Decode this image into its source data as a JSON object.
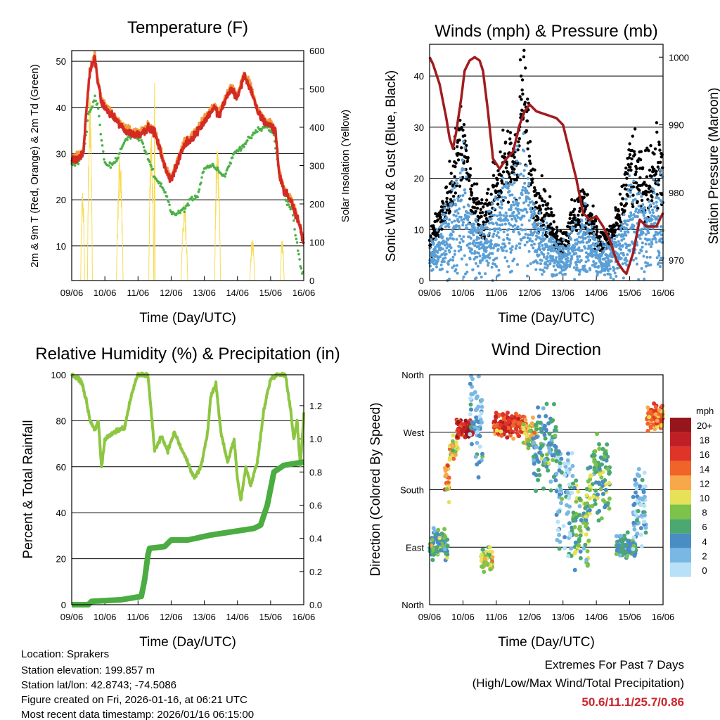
{
  "footer": {
    "location": "Location: Sprakers",
    "elevation": "Station elevation: 199.857 m",
    "latlon": "Station lat/lon: 42.8743; -74.5086",
    "created": "Figure created on Fri, 2026-01-16, at 06:21 UTC",
    "recent": "Most recent data timestamp: 2026/01/16 06:15:00",
    "extremes_title": "Extremes For Past 7 Days",
    "extremes_sub": "(High/Low/Max Wind/Total Precipitation)",
    "extremes_values": "50.6/11.1/25.7/0.86"
  },
  "colors": {
    "temp9m": "#d42a24",
    "temp2m": "#f39a3c",
    "dew": "#4cb147",
    "solar": "#f7dc55",
    "gust": "#000000",
    "sonic": "#5a9fd6",
    "pressure": "#a01c1f",
    "rh": "#8dc641",
    "precip": "#4bac41",
    "extreme": "#c9252c"
  },
  "chart_data": [
    {
      "type": "line",
      "title": "Temperature (F)",
      "xlabel": "Time (Day/UTC)",
      "ylabel": "2m & 9m T (Red, Orange) & 2m Td (Green)",
      "y2label": "Solar Insolation (Yellow)",
      "xticks": [
        "09/06",
        "10/06",
        "11/06",
        "12/06",
        "13/06",
        "14/06",
        "15/06",
        "16/06"
      ],
      "xlim": [
        0,
        7
      ],
      "ylim": [
        2.5,
        52.3
      ],
      "yticks": [
        10,
        20,
        30,
        40,
        50
      ],
      "y2lim": [
        0,
        600
      ],
      "y2ticks": [
        0,
        100,
        200,
        300,
        400,
        500,
        600
      ],
      "series": [
        {
          "name": "9m T",
          "color": "temp9m",
          "points": [
            [
              0,
              28.5
            ],
            [
              0.2,
              29
            ],
            [
              0.35,
              30
            ],
            [
              0.45,
              40
            ],
            [
              0.55,
              48
            ],
            [
              0.7,
              50.6
            ],
            [
              0.8,
              45
            ],
            [
              0.9,
              41
            ],
            [
              1.1,
              39
            ],
            [
              1.3,
              37.5
            ],
            [
              1.6,
              35
            ],
            [
              1.9,
              34
            ],
            [
              2.1,
              34.5
            ],
            [
              2.3,
              35.5
            ],
            [
              2.5,
              34.5
            ],
            [
              2.7,
              30
            ],
            [
              2.85,
              26
            ],
            [
              3.0,
              24.5
            ],
            [
              3.2,
              28
            ],
            [
              3.4,
              32
            ],
            [
              3.6,
              33
            ],
            [
              3.8,
              35
            ],
            [
              4.0,
              37
            ],
            [
              4.3,
              40
            ],
            [
              4.45,
              38
            ],
            [
              4.6,
              41
            ],
            [
              4.8,
              44
            ],
            [
              5.0,
              42
            ],
            [
              5.2,
              47
            ],
            [
              5.4,
              44
            ],
            [
              5.6,
              39
            ],
            [
              5.8,
              37
            ],
            [
              6.0,
              36
            ],
            [
              6.15,
              35
            ],
            [
              6.25,
              26
            ],
            [
              6.4,
              22
            ],
            [
              6.6,
              20
            ],
            [
              6.8,
              16
            ],
            [
              7.0,
              11.1
            ]
          ]
        },
        {
          "name": "2m Td",
          "color": "dew",
          "points": [
            [
              0,
              28
            ],
            [
              0.2,
              28
            ],
            [
              0.35,
              30
            ],
            [
              0.5,
              38
            ],
            [
              0.7,
              42
            ],
            [
              0.8,
              40
            ],
            [
              0.9,
              33
            ],
            [
              1.0,
              28
            ],
            [
              1.2,
              27.5
            ],
            [
              1.4,
              29
            ],
            [
              1.6,
              33
            ],
            [
              1.9,
              34
            ],
            [
              2.1,
              33
            ],
            [
              2.3,
              29
            ],
            [
              2.5,
              25
            ],
            [
              2.7,
              23
            ],
            [
              2.9,
              20
            ],
            [
              3.0,
              17
            ],
            [
              3.2,
              17
            ],
            [
              3.4,
              18
            ],
            [
              3.6,
              20
            ],
            [
              3.8,
              21
            ],
            [
              4.0,
              27
            ],
            [
              4.3,
              27.5
            ],
            [
              4.6,
              25
            ],
            [
              4.9,
              30
            ],
            [
              5.2,
              32
            ],
            [
              5.6,
              35
            ],
            [
              5.9,
              36
            ],
            [
              6.1,
              34
            ],
            [
              6.25,
              26
            ],
            [
              6.45,
              20
            ],
            [
              6.65,
              18
            ],
            [
              6.8,
              10
            ],
            [
              6.95,
              4
            ]
          ]
        },
        {
          "name": "Solar",
          "color": "solar",
          "pulses": [
            [
              0.33,
              250,
              0.12
            ],
            [
              0.55,
              500,
              0.15
            ],
            [
              1.45,
              350,
              0.2
            ],
            [
              2.4,
              400,
              0.15
            ],
            [
              2.5,
              600,
              0.03
            ],
            [
              3.4,
              210,
              0.2
            ],
            [
              4.4,
              380,
              0.18
            ],
            [
              5.45,
              110,
              0.15
            ],
            [
              6.35,
              110,
              0.12
            ]
          ]
        }
      ]
    },
    {
      "type": "scatter",
      "title": "Winds (mph) & Pressure (mb)",
      "xlabel": "Time (Day/UTC)",
      "ylabel": "Sonic Wind & Gust (Blue, Black)",
      "y2label": "Station Pressure (Maroon)",
      "xticks": [
        "09/06",
        "10/06",
        "11/06",
        "12/06",
        "13/06",
        "14/06",
        "15/06",
        "16/06"
      ],
      "xlim": [
        0,
        7
      ],
      "ylim": [
        0,
        46.2
      ],
      "yticks": [
        0,
        10,
        20,
        30,
        40
      ],
      "y2lim": [
        967,
        1001.9
      ],
      "y2ticks": [
        970,
        980,
        990,
        1000
      ],
      "sonic_mean": [
        [
          0,
          5
        ],
        [
          0.3,
          8
        ],
        [
          0.6,
          12
        ],
        [
          0.9,
          18
        ],
        [
          1.0,
          20
        ],
        [
          1.1,
          15
        ],
        [
          1.3,
          10
        ],
        [
          1.6,
          8
        ],
        [
          1.8,
          10
        ],
        [
          2.0,
          13
        ],
        [
          2.3,
          15
        ],
        [
          2.6,
          17
        ],
        [
          2.8,
          22
        ],
        [
          2.9,
          18
        ],
        [
          3.1,
          12
        ],
        [
          3.4,
          10
        ],
        [
          3.6,
          8
        ],
        [
          3.8,
          6
        ],
        [
          4.0,
          5
        ],
        [
          4.3,
          8
        ],
        [
          4.6,
          10
        ],
        [
          4.9,
          8
        ],
        [
          5.1,
          5
        ],
        [
          5.4,
          6
        ],
        [
          5.7,
          8
        ],
        [
          6.0,
          15
        ],
        [
          6.2,
          14
        ],
        [
          6.4,
          12
        ],
        [
          6.7,
          15
        ],
        [
          7,
          15
        ]
      ],
      "pressure": [
        [
          0,
          1000
        ],
        [
          0.1,
          999
        ],
        [
          0.3,
          996
        ],
        [
          0.5,
          991
        ],
        [
          0.6,
          988
        ],
        [
          0.7,
          986.5
        ],
        [
          0.8,
          989
        ],
        [
          0.95,
          994
        ],
        [
          1.05,
          998
        ],
        [
          1.2,
          999.5
        ],
        [
          1.35,
          1000
        ],
        [
          1.5,
          999.5
        ],
        [
          1.6,
          998
        ],
        [
          1.75,
          992
        ],
        [
          1.9,
          985
        ],
        [
          2.1,
          983.5
        ],
        [
          2.3,
          985
        ],
        [
          2.5,
          986
        ],
        [
          2.7,
          990
        ],
        [
          2.85,
          992
        ],
        [
          3.0,
          993
        ],
        [
          3.2,
          992
        ],
        [
          3.5,
          991.5
        ],
        [
          3.8,
          991
        ],
        [
          4.0,
          990
        ],
        [
          4.2,
          986
        ],
        [
          4.4,
          982
        ],
        [
          4.6,
          977
        ],
        [
          4.8,
          976
        ],
        [
          5.0,
          976.5
        ],
        [
          5.2,
          975
        ],
        [
          5.4,
          973
        ],
        [
          5.6,
          970
        ],
        [
          5.8,
          968.5
        ],
        [
          5.9,
          968
        ],
        [
          6.1,
          971
        ],
        [
          6.3,
          976
        ],
        [
          6.5,
          975
        ],
        [
          6.8,
          975
        ],
        [
          7.0,
          977
        ]
      ],
      "max_gust": 25.7
    },
    {
      "type": "line",
      "title": "Relative Humidity (%) & Precipitation (in)",
      "xlabel": "Time (Day/UTC)",
      "ylabel": "Percent & Total Rainfall",
      "xticks": [
        "09/06",
        "10/06",
        "11/06",
        "12/06",
        "13/06",
        "14/06",
        "15/06",
        "16/06"
      ],
      "xlim": [
        0,
        7
      ],
      "ylim": [
        0,
        100
      ],
      "yticks": [
        0,
        20,
        40,
        60,
        80,
        100
      ],
      "y2lim": [
        0,
        1.386
      ],
      "y2ticks": [
        "0.0",
        "0.2",
        "0.4",
        "0.6",
        "0.8",
        "1.0",
        "1.2"
      ],
      "rh": [
        [
          0,
          100
        ],
        [
          0.2,
          98
        ],
        [
          0.3,
          97
        ],
        [
          0.45,
          88
        ],
        [
          0.55,
          80
        ],
        [
          0.7,
          76
        ],
        [
          0.8,
          80
        ],
        [
          0.9,
          60
        ],
        [
          1.0,
          72
        ],
        [
          1.2,
          74
        ],
        [
          1.4,
          76
        ],
        [
          1.6,
          77
        ],
        [
          1.75,
          88
        ],
        [
          1.9,
          96
        ],
        [
          2.0,
          100
        ],
        [
          2.3,
          100
        ],
        [
          2.5,
          67
        ],
        [
          2.7,
          73
        ],
        [
          2.9,
          67
        ],
        [
          3.1,
          75
        ],
        [
          3.3,
          68
        ],
        [
          3.5,
          62
        ],
        [
          3.7,
          55
        ],
        [
          3.9,
          60
        ],
        [
          4.1,
          75
        ],
        [
          4.2,
          91
        ],
        [
          4.35,
          96
        ],
        [
          4.5,
          75
        ],
        [
          4.7,
          62
        ],
        [
          4.9,
          72
        ],
        [
          5.0,
          55
        ],
        [
          5.1,
          45
        ],
        [
          5.25,
          60
        ],
        [
          5.4,
          52
        ],
        [
          5.6,
          62
        ],
        [
          5.8,
          85
        ],
        [
          6.0,
          98
        ],
        [
          6.2,
          100
        ],
        [
          6.45,
          100
        ],
        [
          6.6,
          85
        ],
        [
          6.7,
          72
        ],
        [
          6.8,
          80
        ],
        [
          6.9,
          60
        ],
        [
          7,
          83
        ]
      ],
      "precip": [
        [
          0,
          0
        ],
        [
          0.5,
          0
        ],
        [
          0.6,
          0.02
        ],
        [
          1.5,
          0.03
        ],
        [
          2.1,
          0.05
        ],
        [
          2.2,
          0.15
        ],
        [
          2.3,
          0.3
        ],
        [
          2.35,
          0.34
        ],
        [
          2.8,
          0.35
        ],
        [
          3.0,
          0.39
        ],
        [
          3.5,
          0.39
        ],
        [
          4.2,
          0.42
        ],
        [
          5.5,
          0.46
        ],
        [
          5.7,
          0.48
        ],
        [
          5.9,
          0.6
        ],
        [
          6.1,
          0.8
        ],
        [
          6.4,
          0.84
        ],
        [
          7,
          0.86
        ]
      ]
    },
    {
      "type": "scatter",
      "title": "Wind Direction",
      "xlabel": "Time (Day/UTC)",
      "ylabel": "Direction (Colored By Speed)",
      "xticks": [
        "09/06",
        "10/06",
        "11/06",
        "12/06",
        "13/06",
        "14/06",
        "15/06",
        "16/06"
      ],
      "xlim": [
        0,
        7
      ],
      "ylim": [
        0,
        360
      ],
      "yticks": [
        {
          "v": 360,
          "l": "North"
        },
        {
          "v": 270,
          "l": "West"
        },
        {
          "v": 180,
          "l": "South"
        },
        {
          "v": 90,
          "l": "East"
        },
        {
          "v": 0,
          "l": "North"
        }
      ],
      "legend": {
        "title": "mph",
        "labels": [
          "20+",
          "18",
          "16",
          "14",
          "12",
          "10",
          "8",
          "6",
          "4",
          "2",
          "0"
        ],
        "colors": [
          "#97161c",
          "#c11f26",
          "#df3428",
          "#f06329",
          "#f8a849",
          "#e6e157",
          "#7cc24b",
          "#4aa870",
          "#4a8cc4",
          "#7ab8e4",
          "#b7e1f7"
        ]
      },
      "clusters": [
        [
          0,
          0.55,
          95,
          18,
          6
        ],
        [
          0.45,
          0.6,
          195,
          25,
          12
        ],
        [
          0.6,
          0.85,
          245,
          15,
          10
        ],
        [
          0.8,
          1.3,
          275,
          10,
          18
        ],
        [
          1.2,
          1.6,
          290,
          55,
          3
        ],
        [
          1.55,
          1.9,
          70,
          12,
          9
        ],
        [
          1.9,
          2.9,
          282,
          12,
          16
        ],
        [
          2.8,
          3.2,
          265,
          15,
          10
        ],
        [
          3.1,
          3.8,
          245,
          40,
          5
        ],
        [
          3.8,
          4.3,
          160,
          70,
          3
        ],
        [
          4.3,
          4.8,
          130,
          50,
          7
        ],
        [
          4.8,
          5.4,
          200,
          40,
          7
        ],
        [
          5.6,
          6.2,
          90,
          12,
          5
        ],
        [
          6.1,
          6.5,
          150,
          40,
          3
        ],
        [
          6.5,
          7,
          292,
          15,
          14
        ]
      ]
    }
  ]
}
